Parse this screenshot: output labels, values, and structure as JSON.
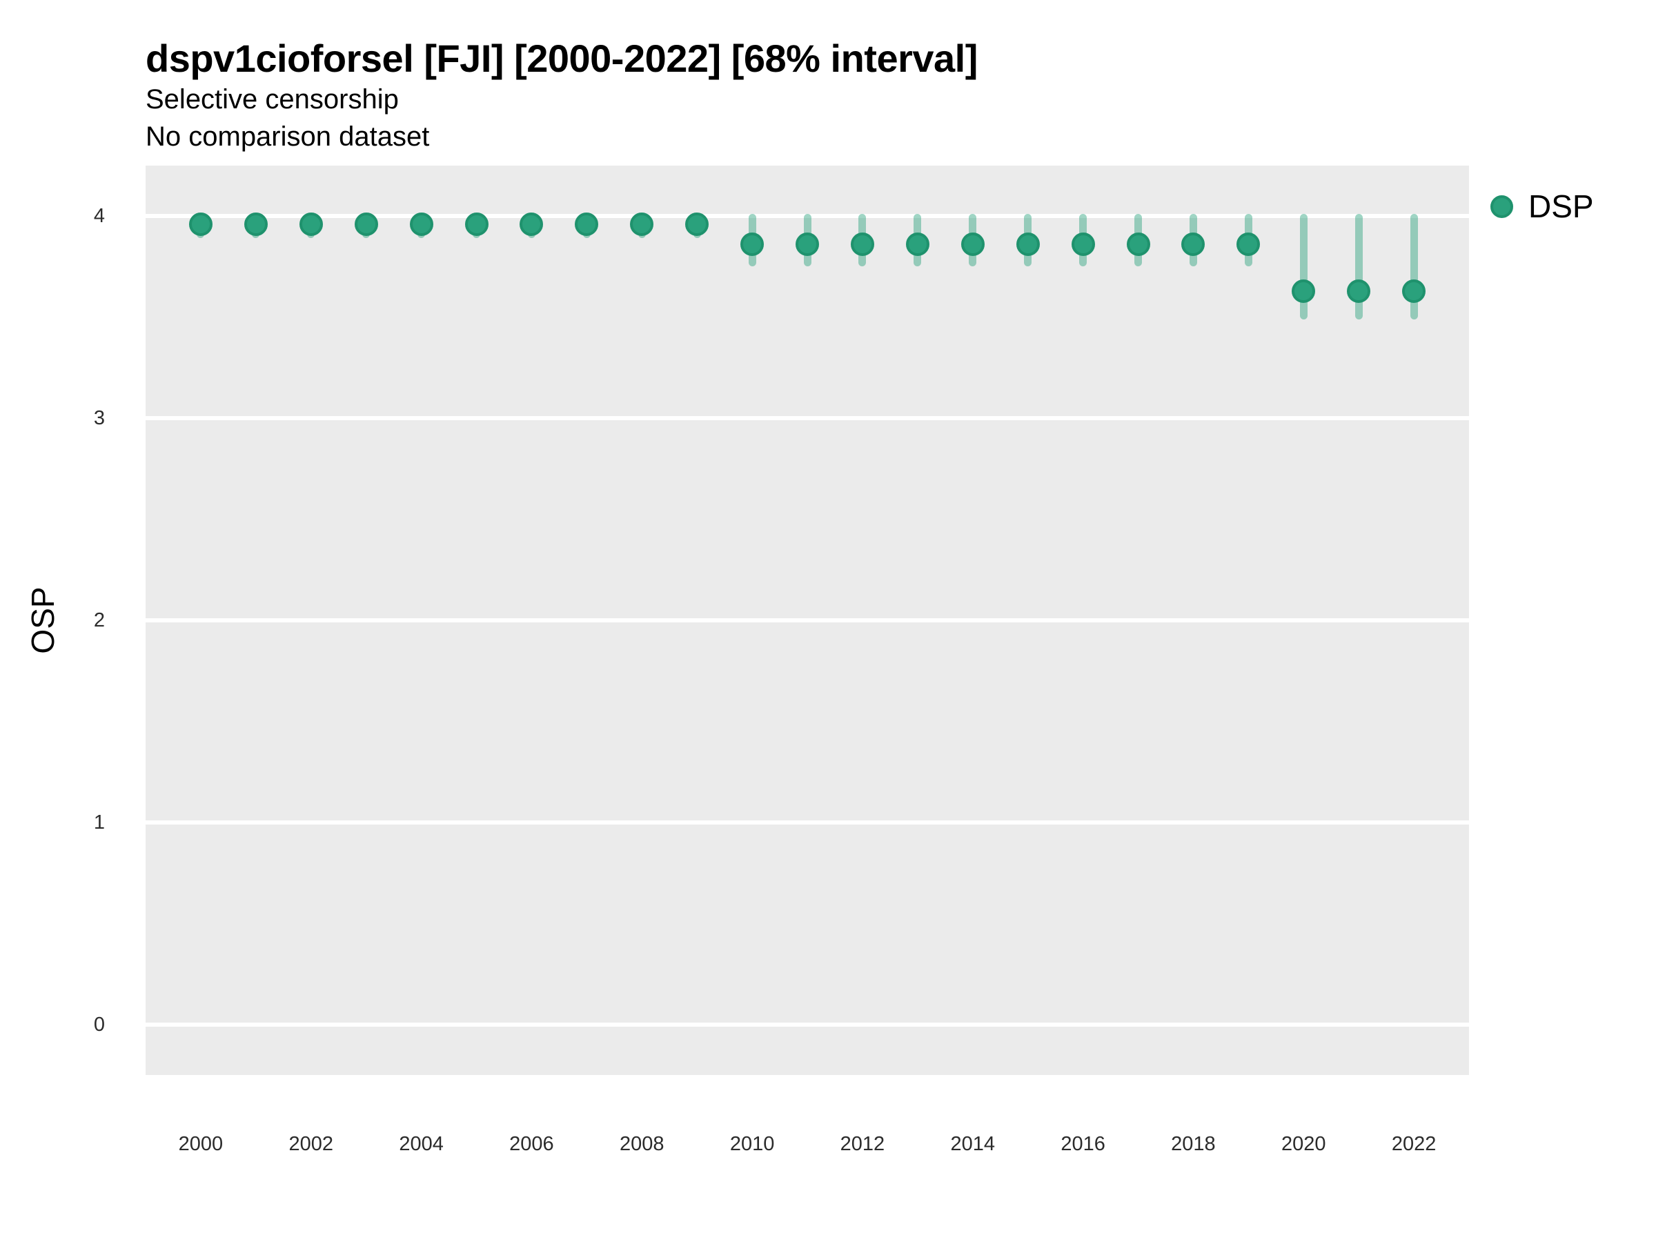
{
  "header": {
    "title": "dspv1cioforsel [FJI] [2000-2022] [68% interval]",
    "subtitle1": "Selective censorship",
    "subtitle2": "No comparison dataset"
  },
  "legend": {
    "items": [
      {
        "label": "DSP",
        "color": "#2aa17c"
      }
    ]
  },
  "chart_data": {
    "type": "scatter",
    "title": "dspv1cioforsel [FJI] [2000-2022] [68% interval]",
    "subtitle": [
      "Selective censorship",
      "No comparison dataset"
    ],
    "xlabel": "",
    "ylabel": "OSP",
    "interval_level": "68%",
    "x": [
      2000,
      2001,
      2002,
      2003,
      2004,
      2005,
      2006,
      2007,
      2008,
      2009,
      2010,
      2011,
      2012,
      2013,
      2014,
      2015,
      2016,
      2017,
      2018,
      2019,
      2020,
      2021,
      2022
    ],
    "series": [
      {
        "name": "DSP",
        "values": [
          3.96,
          3.96,
          3.96,
          3.96,
          3.96,
          3.96,
          3.96,
          3.96,
          3.96,
          3.96,
          3.86,
          3.86,
          3.86,
          3.86,
          3.86,
          3.86,
          3.86,
          3.86,
          3.86,
          3.86,
          3.63,
          3.63,
          3.63
        ],
        "interval_low": [
          3.89,
          3.89,
          3.89,
          3.89,
          3.89,
          3.89,
          3.89,
          3.89,
          3.89,
          3.89,
          3.75,
          3.75,
          3.75,
          3.75,
          3.75,
          3.75,
          3.75,
          3.75,
          3.75,
          3.75,
          3.49,
          3.49,
          3.49
        ],
        "interval_high": [
          4.0,
          4.0,
          4.0,
          4.0,
          4.0,
          4.0,
          4.0,
          4.0,
          4.0,
          4.0,
          4.01,
          4.01,
          4.01,
          4.01,
          4.01,
          4.01,
          4.01,
          4.01,
          4.01,
          4.01,
          4.01,
          4.01,
          4.01
        ]
      }
    ],
    "xlim": [
      1999,
      2023
    ],
    "ylim": [
      -0.25,
      4.25
    ],
    "yticks": [
      0,
      1,
      2,
      3,
      4
    ],
    "xticks": [
      2000,
      2002,
      2004,
      2006,
      2008,
      2010,
      2012,
      2014,
      2016,
      2018,
      2020,
      2022
    ],
    "grid": "major horizontal white lines on gray panel",
    "legend_position": "right-top",
    "colors": {
      "point": "#2aa17c",
      "point_stroke": "#1f926d",
      "interval": "rgba(42,161,124,0.45)",
      "panel_bg": "#ebebeb",
      "gridline": "#ffffff",
      "text": "#000000"
    }
  }
}
